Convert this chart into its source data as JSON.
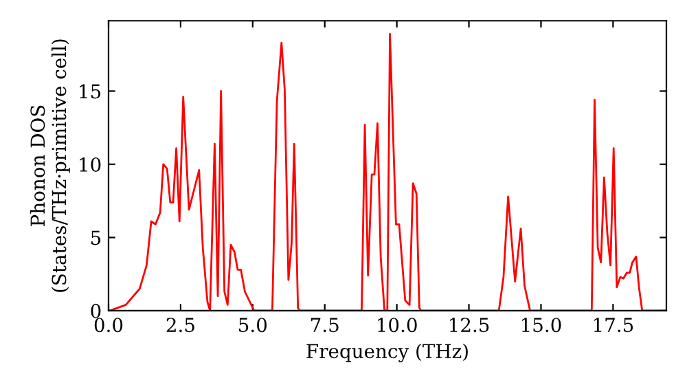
{
  "chart_data": {
    "type": "line",
    "xlabel": "Frequency (THz)",
    "ylabel": "Phonon DOS\n(States/THz·primitive cell)",
    "x": [
      0.05,
      0.6,
      1.08,
      1.32,
      1.48,
      1.63,
      1.79,
      1.9,
      2.03,
      2.14,
      2.24,
      2.35,
      2.46,
      2.59,
      2.79,
      3.14,
      3.27,
      3.43,
      3.52,
      3.68,
      3.79,
      3.9,
      4.02,
      4.13,
      4.24,
      4.37,
      4.48,
      4.59,
      4.73,
      5.05,
      5.68,
      5.84,
      6.0,
      6.11,
      6.24,
      6.35,
      6.44,
      6.57,
      6.63,
      8.78,
      8.89,
      9.0,
      9.13,
      9.22,
      9.33,
      9.44,
      9.57,
      9.67,
      9.76,
      9.97,
      10.08,
      10.29,
      10.44,
      10.56,
      10.68,
      10.78,
      10.84,
      13.54,
      13.7,
      13.86,
      14.1,
      14.3,
      14.43,
      14.62,
      16.76,
      16.86,
      16.97,
      17.08,
      17.19,
      17.3,
      17.41,
      17.52,
      17.63,
      17.75,
      17.86,
      17.98,
      18.08,
      18.17,
      18.3,
      18.4,
      18.51,
      19.33
    ],
    "series": [
      {
        "color": "#ff0000",
        "values": [
          0,
          0.4,
          1.5,
          3.1,
          6.1,
          5.9,
          6.7,
          10.0,
          9.7,
          7.4,
          7.4,
          11.1,
          6.1,
          14.6,
          6.9,
          9.6,
          4.3,
          0.6,
          0,
          11.4,
          1.0,
          15.0,
          1.3,
          0.4,
          4.5,
          4.0,
          2.8,
          2.8,
          1.3,
          0,
          0,
          14.3,
          18.3,
          15.1,
          2.1,
          4.6,
          11.4,
          0.2,
          0,
          0,
          12.7,
          2.4,
          9.3,
          9.3,
          12.8,
          3.7,
          0,
          0,
          18.9,
          5.9,
          5.9,
          0.7,
          0.4,
          8.7,
          8.0,
          0.2,
          0,
          0,
          2.3,
          7.8,
          2.0,
          5.6,
          1.7,
          0,
          0,
          14.4,
          4.3,
          3.3,
          9.1,
          5.3,
          3.1,
          11.1,
          1.6,
          2.3,
          2.2,
          2.6,
          2.6,
          3.3,
          3.7,
          1.6,
          0,
          0
        ]
      }
    ],
    "xlim": [
      0,
      19.35
    ],
    "ylim": [
      0,
      19.8
    ],
    "xticks": [
      {
        "value": 0,
        "label": "0.0"
      },
      {
        "value": 2.5,
        "label": "2.5"
      },
      {
        "value": 5,
        "label": "5.0"
      },
      {
        "value": 7.5,
        "label": "7.5"
      },
      {
        "value": 10,
        "label": "10.0"
      },
      {
        "value": 12.5,
        "label": "12.5"
      },
      {
        "value": 15,
        "label": "15.0"
      },
      {
        "value": 17.5,
        "label": "17.5"
      }
    ],
    "yticks": [
      0,
      5,
      10,
      15
    ],
    "grid": false,
    "legend": false
  }
}
